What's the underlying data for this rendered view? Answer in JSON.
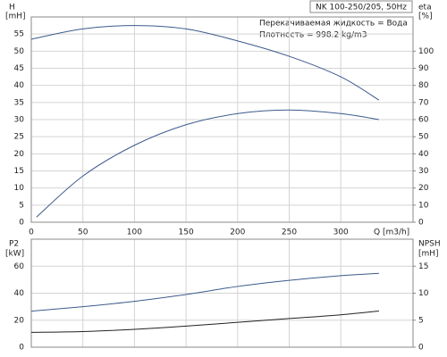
{
  "chart_data": [
    {
      "type": "line",
      "box_label": "NK 100-250/205, 50Hz",
      "annotations": [
        "Перекачиваемая жидкость = Вода",
        "Плотность = 998.2 kg/m3"
      ],
      "ylabel": [
        "H",
        "[mH]"
      ],
      "y2label": [
        "eta",
        "[%]"
      ],
      "xlabel": "Q [m3/h]",
      "xlim": [
        0,
        370
      ],
      "xticks": [
        0,
        50,
        100,
        150,
        200,
        250,
        300
      ],
      "ylim": [
        0,
        60
      ],
      "yticks": [
        0,
        5,
        10,
        15,
        20,
        25,
        30,
        35,
        40,
        45,
        50,
        55
      ],
      "y2lim": [
        0,
        120
      ],
      "y2ticks": [
        0,
        10,
        20,
        30,
        40,
        50,
        60,
        70,
        80,
        90,
        100
      ],
      "grid": true,
      "series": [
        {
          "color": "#3c5a8c",
          "x": [
            0,
            50,
            100,
            150,
            200,
            250,
            300,
            337
          ],
          "values": [
            53.5,
            56.5,
            57.5,
            56.5,
            53,
            48.5,
            42.5,
            35.7
          ]
        },
        {
          "color": "#3c5a8c",
          "axis": "y2",
          "x": [
            5,
            50,
            100,
            150,
            200,
            250,
            300,
            337
          ],
          "values": [
            3,
            27,
            45,
            57,
            63.5,
            65.6,
            63.5,
            60
          ]
        }
      ]
    },
    {
      "type": "line",
      "ylabel": [
        "P2",
        "[kW]"
      ],
      "y2label": [
        "NPSH",
        "[mH]"
      ],
      "xlim": [
        0,
        370
      ],
      "xticks": [
        0,
        50,
        100,
        150,
        200,
        250,
        300
      ],
      "ylim": [
        0,
        80
      ],
      "yticks": [
        0,
        20,
        40,
        60
      ],
      "y2lim": [
        0,
        20
      ],
      "y2ticks": [
        0,
        5,
        10,
        15
      ],
      "grid": true,
      "series": [
        {
          "color": "#3c5a8c",
          "x": [
            0,
            50,
            100,
            150,
            200,
            250,
            300,
            337
          ],
          "values": [
            26.7,
            30,
            34,
            39,
            45,
            49.5,
            53,
            54.7
          ]
        },
        {
          "color": "#222222",
          "axis": "y2",
          "x": [
            0,
            50,
            100,
            150,
            200,
            250,
            300,
            337
          ],
          "values": [
            2.75,
            2.9,
            3.3,
            3.9,
            4.6,
            5.3,
            6,
            6.7
          ]
        }
      ]
    }
  ]
}
